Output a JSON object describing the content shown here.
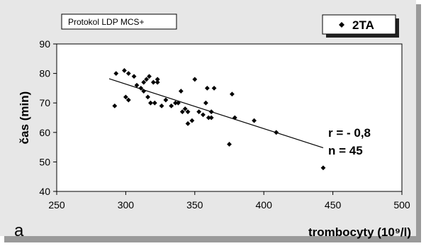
{
  "panel_letter": "a",
  "protocol_label": "Protokol LDP MCS+",
  "stats": {
    "r": "r = - 0,8",
    "n": "n = 45"
  },
  "chart_data": {
    "type": "scatter",
    "xlabel": "trombocyty (10⁹/l)",
    "ylabel": "čas (min)",
    "xlim": [
      250,
      500
    ],
    "ylim": [
      40,
      90
    ],
    "xticks": [
      "250",
      "300",
      "350",
      "400",
      "450",
      "500"
    ],
    "yticks": [
      "40",
      "50",
      "60",
      "70",
      "80",
      "90"
    ],
    "legend": {
      "position": "top-right",
      "label": "2TA"
    },
    "grid": false,
    "series": [
      {
        "name": "2TA",
        "marker": "diamond",
        "color": "#000000",
        "points": [
          [
            293,
            80
          ],
          [
            299,
            81
          ],
          [
            302,
            80
          ],
          [
            306,
            79
          ],
          [
            308,
            76
          ],
          [
            311,
            75
          ],
          [
            313,
            77
          ],
          [
            315,
            78
          ],
          [
            317,
            79
          ],
          [
            320,
            77
          ],
          [
            323,
            77
          ],
          [
            323,
            78
          ],
          [
            292,
            69
          ],
          [
            300,
            72
          ],
          [
            302,
            71
          ],
          [
            313,
            74
          ],
          [
            316,
            72
          ],
          [
            318,
            70
          ],
          [
            321,
            70
          ],
          [
            326,
            69
          ],
          [
            329,
            71
          ],
          [
            333,
            69
          ],
          [
            336,
            70
          ],
          [
            338,
            70
          ],
          [
            340,
            74
          ],
          [
            341,
            67
          ],
          [
            343,
            68
          ],
          [
            345,
            67
          ],
          [
            345,
            63
          ],
          [
            348,
            64
          ],
          [
            350,
            78
          ],
          [
            353,
            67
          ],
          [
            356,
            66
          ],
          [
            358,
            70
          ],
          [
            359,
            75
          ],
          [
            360,
            65
          ],
          [
            362,
            67
          ],
          [
            362,
            65
          ],
          [
            364,
            75
          ],
          [
            375,
            56
          ],
          [
            377,
            73
          ],
          [
            379,
            65
          ],
          [
            393,
            64
          ],
          [
            409,
            60
          ],
          [
            443,
            48
          ]
        ]
      }
    ],
    "trendline": {
      "x": [
        288,
        443
      ],
      "y": [
        78.2,
        54.8
      ]
    }
  }
}
